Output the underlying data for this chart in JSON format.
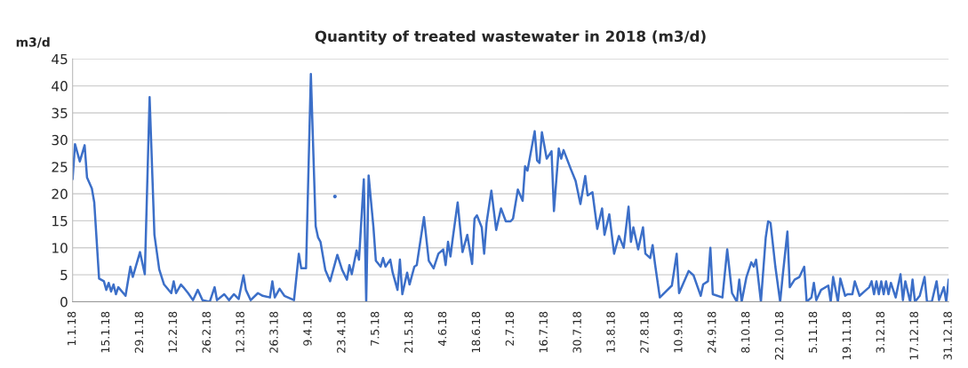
{
  "chart_data": {
    "type": "line",
    "title": "Quantity of treated wastewater in 2018 (m3/d)",
    "ylabel": "m3/d",
    "xlim": [
      "2018-01-01",
      "2018-12-31"
    ],
    "xticks": [
      {
        "value": "2018-01-01",
        "label": "1.1.18"
      },
      {
        "value": "2018-01-15",
        "label": "15.1.18"
      },
      {
        "value": "2018-01-29",
        "label": "29.1.18"
      },
      {
        "value": "2018-02-12",
        "label": "12.2.18"
      },
      {
        "value": "2018-02-26",
        "label": "26.2.18"
      },
      {
        "value": "2018-03-12",
        "label": "12.3.18"
      },
      {
        "value": "2018-03-26",
        "label": "26.3.18"
      },
      {
        "value": "2018-04-09",
        "label": "9.4.18"
      },
      {
        "value": "2018-04-23",
        "label": "23.4.18"
      },
      {
        "value": "2018-05-07",
        "label": "7.5.18"
      },
      {
        "value": "2018-05-21",
        "label": "21.5.18"
      },
      {
        "value": "2018-06-04",
        "label": "4.6.18"
      },
      {
        "value": "2018-06-18",
        "label": "18.6.18"
      },
      {
        "value": "2018-07-02",
        "label": "2.7.18"
      },
      {
        "value": "2018-07-16",
        "label": "16.7.18"
      },
      {
        "value": "2018-07-30",
        "label": "30.7.18"
      },
      {
        "value": "2018-08-13",
        "label": "13.8.18"
      },
      {
        "value": "2018-08-27",
        "label": "27.8.18"
      },
      {
        "value": "2018-09-10",
        "label": "10.9.18"
      },
      {
        "value": "2018-09-24",
        "label": "24.9.18"
      },
      {
        "value": "2018-10-08",
        "label": "8.10.18"
      },
      {
        "value": "2018-10-22",
        "label": "22.10.18"
      },
      {
        "value": "2018-11-05",
        "label": "5.11.18"
      },
      {
        "value": "2018-11-19",
        "label": "19.11.18"
      },
      {
        "value": "2018-12-03",
        "label": "3.12.18"
      },
      {
        "value": "2018-12-17",
        "label": "17.12.18"
      },
      {
        "value": "2018-12-31",
        "label": "31.12.18"
      }
    ],
    "ylim": [
      0,
      45
    ],
    "yticks": [
      0,
      5,
      10,
      15,
      20,
      25,
      30,
      35,
      40,
      45
    ],
    "grid": "y",
    "marker": "none",
    "line_style": "solid",
    "series": [
      {
        "color": "#3c6fc8",
        "x": [
          "2018-01-01",
          "2018-01-02",
          "2018-01-04",
          "2018-01-06",
          "2018-01-07",
          "2018-01-09",
          "2018-01-10",
          "2018-01-12",
          "2018-01-14",
          "2018-01-15",
          "2018-01-16",
          "2018-01-17",
          "2018-01-18",
          "2018-01-19",
          "2018-01-20",
          "2018-01-23",
          "2018-01-25",
          "2018-01-26",
          "2018-01-29",
          "2018-01-31",
          "2018-02-02",
          "2018-02-04",
          "2018-02-06",
          "2018-02-08",
          "2018-02-11",
          "2018-02-12",
          "2018-02-13",
          "2018-02-15",
          "2018-02-16",
          "2018-02-18",
          "2018-02-20",
          "2018-02-22",
          "2018-02-24",
          "2018-02-27",
          "2018-03-01",
          "2018-03-02",
          "2018-03-05",
          "2018-03-07",
          "2018-03-09",
          "2018-03-11",
          "2018-03-13",
          "2018-03-14",
          "2018-03-16",
          "2018-03-19",
          "2018-03-21",
          "2018-03-24",
          "2018-03-25",
          "2018-03-26",
          "2018-03-28",
          "2018-03-30",
          "2018-04-03",
          "2018-04-05",
          "2018-04-06",
          "2018-04-08",
          "2018-04-10",
          "2018-04-12",
          "2018-04-13",
          "2018-04-14",
          "2018-04-16",
          "2018-04-18",
          "2018-04-21",
          "2018-04-23",
          "2018-04-25",
          "2018-04-26",
          "2018-04-27",
          "2018-04-29",
          "2018-04-30",
          "2018-05-02",
          "2018-05-03",
          "2018-05-04",
          "2018-05-06",
          "2018-05-07",
          "2018-05-09",
          "2018-05-10",
          "2018-05-11",
          "2018-05-13",
          "2018-05-14",
          "2018-05-16",
          "2018-05-17",
          "2018-05-18",
          "2018-05-20",
          "2018-05-21",
          "2018-05-23",
          "2018-05-24",
          "2018-05-27",
          "2018-05-29",
          "2018-05-31",
          "2018-06-02",
          "2018-06-04",
          "2018-06-05",
          "2018-06-06",
          "2018-06-07",
          "2018-06-08",
          "2018-06-10",
          "2018-06-12",
          "2018-06-14",
          "2018-06-16",
          "2018-06-17",
          "2018-06-18",
          "2018-06-20",
          "2018-06-21",
          "2018-06-22",
          "2018-06-24",
          "2018-06-26",
          "2018-06-28",
          "2018-06-30",
          "2018-07-02",
          "2018-07-03",
          "2018-07-05",
          "2018-07-07",
          "2018-07-08",
          "2018-07-09",
          "2018-07-12",
          "2018-07-13",
          "2018-07-14",
          "2018-07-15",
          "2018-07-17",
          "2018-07-19",
          "2018-07-20",
          "2018-07-22",
          "2018-07-23",
          "2018-07-24",
          "2018-07-27",
          "2018-07-29",
          "2018-07-31",
          "2018-08-02",
          "2018-08-03",
          "2018-08-05",
          "2018-08-07",
          "2018-08-09",
          "2018-08-10",
          "2018-08-12",
          "2018-08-14",
          "2018-08-16",
          "2018-08-18",
          "2018-08-20",
          "2018-08-21",
          "2018-08-22",
          "2018-08-24",
          "2018-08-26",
          "2018-08-27",
          "2018-08-29",
          "2018-08-30",
          "2018-08-31",
          "2018-09-02",
          "2018-09-07",
          "2018-09-09",
          "2018-09-10",
          "2018-09-14",
          "2018-09-16",
          "2018-09-19",
          "2018-09-20",
          "2018-09-22",
          "2018-09-23",
          "2018-09-24",
          "2018-09-28",
          "2018-09-30",
          "2018-10-02",
          "2018-10-04",
          "2018-10-05",
          "2018-10-06",
          "2018-10-08",
          "2018-10-10",
          "2018-10-11",
          "2018-10-12",
          "2018-10-14",
          "2018-10-16",
          "2018-10-17",
          "2018-10-18",
          "2018-10-20",
          "2018-10-22",
          "2018-10-23",
          "2018-10-25",
          "2018-10-26",
          "2018-10-28",
          "2018-10-30",
          "2018-11-01",
          "2018-11-02",
          "2018-11-04",
          "2018-11-05",
          "2018-11-06",
          "2018-11-08",
          "2018-11-11",
          "2018-11-12",
          "2018-11-13",
          "2018-11-15",
          "2018-11-16",
          "2018-11-18",
          "2018-11-19",
          "2018-11-21",
          "2018-11-22",
          "2018-11-24",
          "2018-11-26",
          "2018-11-28",
          "2018-11-29",
          "2018-11-30",
          "2018-12-01",
          "2018-12-02",
          "2018-12-03",
          "2018-12-04",
          "2018-12-05",
          "2018-12-06",
          "2018-12-07",
          "2018-12-09",
          "2018-12-11",
          "2018-12-12",
          "2018-12-13",
          "2018-12-15",
          "2018-12-16",
          "2018-12-17",
          "2018-12-19",
          "2018-12-21",
          "2018-12-22",
          "2018-12-24",
          "2018-12-26",
          "2018-12-27",
          "2018-12-29",
          "2018-12-30",
          "2018-12-31"
        ],
        "values": [
          22.7,
          29.2,
          26,
          29,
          23,
          21,
          18.4,
          4.3,
          3.8,
          2.2,
          3.5,
          1.9,
          3.2,
          1.4,
          2.7,
          1.1,
          6.5,
          4.6,
          9.2,
          5.1,
          37.9,
          12.4,
          6,
          3.2,
          1.6,
          3.8,
          1.6,
          3.2,
          2.7,
          1.6,
          0.3,
          2.2,
          0.3,
          0,
          2.7,
          0.3,
          1.4,
          0.3,
          1.4,
          0.5,
          4.9,
          2.2,
          0.3,
          1.6,
          1.1,
          0.8,
          3.8,
          0.8,
          2.4,
          1.1,
          0.3,
          8.9,
          6.2,
          6.2,
          42.2,
          14,
          11.9,
          11.1,
          5.9,
          3.8,
          8.7,
          5.9,
          4.1,
          6.8,
          5.1,
          9.5,
          7.8,
          22.7,
          0,
          23.4,
          13.8,
          7.6,
          6.5,
          8.1,
          6.5,
          7.8,
          5.4,
          2.2,
          7.8,
          1.4,
          5.4,
          3.2,
          6.5,
          6.8,
          15.7,
          7.6,
          6.2,
          8.9,
          9.7,
          6.8,
          11.1,
          8.4,
          11.9,
          18.4,
          9.2,
          12.4,
          7.0,
          15.4,
          16,
          13.8,
          8.9,
          14.6,
          20.6,
          13.3,
          17.3,
          14.9,
          14.9,
          15.4,
          20.8,
          18.7,
          25.1,
          24.3,
          31.6,
          26.2,
          25.7,
          31.4,
          26.5,
          27.9,
          16.8,
          28.4,
          26.5,
          28.1,
          24.6,
          22.4,
          18.1,
          23.3,
          19.7,
          20.3,
          13.5,
          17.3,
          12.4,
          16.2,
          8.9,
          12.2,
          10,
          17.6,
          11.1,
          13.8,
          9.7,
          13.8,
          8.9,
          8.1,
          10.5,
          7.0,
          0.8,
          3.0,
          8.9,
          1.6,
          5.7,
          4.9,
          1.1,
          3.2,
          3.8,
          10,
          1.4,
          0.8,
          9.7,
          1.6,
          0,
          4.1,
          0,
          4.6,
          7.3,
          6.5,
          7.8,
          0,
          11.9,
          14.9,
          14.6,
          6.5,
          0,
          4.6,
          13,
          2.7,
          4.1,
          4.6,
          6.5,
          0,
          0.8,
          3.5,
          0.3,
          2.2,
          3.0,
          0,
          4.6,
          0,
          4.3,
          1.1,
          1.4,
          1.4,
          3.8,
          1.1,
          1.9,
          2.7,
          3.8,
          1.4,
          3.8,
          1.4,
          3.8,
          1.4,
          3.8,
          1.4,
          3.5,
          0.8,
          5.1,
          0.3,
          3.8,
          0,
          4.1,
          0,
          1.1,
          4.6,
          0,
          0,
          3.8,
          0.3,
          2.7,
          0,
          4.1
        ]
      },
      {
        "type": "scatter",
        "color": "#3c6fc8",
        "x": [
          "2018-04-20"
        ],
        "values": [
          19.5
        ]
      }
    ]
  }
}
